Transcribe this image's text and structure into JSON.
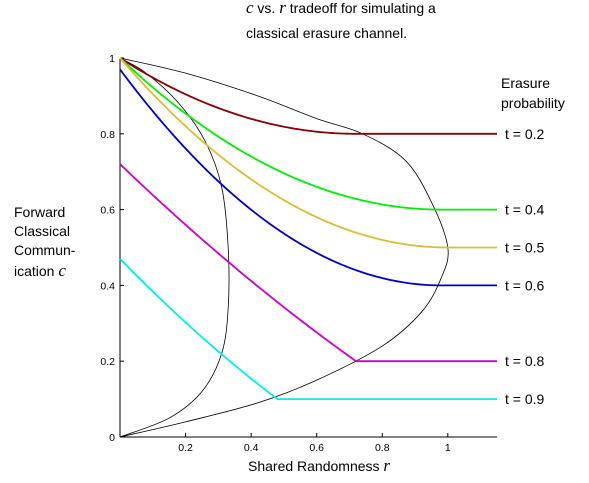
{
  "chart_data": {
    "type": "line",
    "title": {
      "var_c": "c",
      "mid": " vs. ",
      "var_r": "r",
      "rest": "  tradeoff for simulating a",
      "line2": "classical erasure channel."
    },
    "xlabel": {
      "text": "Shared Randomness ",
      "var": "r"
    },
    "ylabel": {
      "line1": "Forward",
      "line2": "Classical",
      "line3": "Commun-",
      "line4": "ication ",
      "var": "c"
    },
    "legend_title": [
      "Erasure",
      "probability"
    ],
    "xlim": [
      0,
      1.15
    ],
    "ylim": [
      0,
      1
    ],
    "x_ticks": [
      0.2,
      0.4,
      0.6,
      0.8,
      1
    ],
    "x_tick_labels": [
      "0.2",
      "0.4",
      "0.6",
      "0.8",
      "1"
    ],
    "y_ticks": [
      0,
      0.2,
      0.4,
      0.6,
      0.8,
      1
    ],
    "y_tick_labels": [
      "0",
      "0.2",
      "0.4",
      "0.6",
      "0.8",
      "1"
    ],
    "grid": false,
    "series": [
      {
        "name": "t = 0.2",
        "t": 0.2,
        "color": "#8b0000"
      },
      {
        "name": "t = 0.4",
        "t": 0.4,
        "color": "#00ee00"
      },
      {
        "name": "t = 0.5",
        "t": 0.5,
        "color": "#ddbb33"
      },
      {
        "name": "t = 0.6",
        "t": 0.6,
        "color": "#0000cc"
      },
      {
        "name": "t = 0.8",
        "t": 0.8,
        "color": "#cc00cc"
      },
      {
        "name": "t = 0.9",
        "t": 0.9,
        "color": "#00eeee"
      }
    ],
    "boundary_curves": [
      {
        "points": [
          [
            0,
            1
          ],
          [
            0.08,
            0.96
          ],
          [
            0.18,
            0.88
          ],
          [
            0.26,
            0.78
          ],
          [
            0.31,
            0.66
          ],
          [
            0.33,
            0.5
          ],
          [
            0.33,
            0.34
          ],
          [
            0.31,
            0.22
          ],
          [
            0.25,
            0.12
          ],
          [
            0.15,
            0.05
          ],
          [
            0,
            0
          ]
        ]
      },
      {
        "points": [
          [
            0,
            1
          ],
          [
            0.2,
            0.96
          ],
          [
            0.42,
            0.9
          ],
          [
            0.6,
            0.84
          ],
          [
            0.74,
            0.8
          ],
          [
            0.87,
            0.73
          ],
          [
            0.95,
            0.62
          ],
          [
            1,
            0.5
          ],
          [
            0.98,
            0.42
          ],
          [
            0.92,
            0.33
          ],
          [
            0.8,
            0.24
          ],
          [
            0.6,
            0.15
          ],
          [
            0.42,
            0.09
          ],
          [
            0.2,
            0.04
          ],
          [
            0,
            0
          ]
        ]
      }
    ]
  }
}
